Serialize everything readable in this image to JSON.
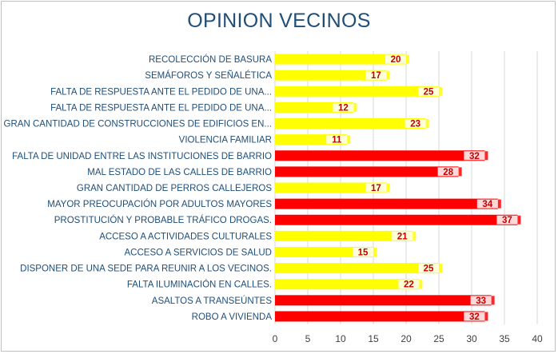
{
  "chart_data": {
    "type": "bar",
    "orientation": "horizontal",
    "title": "OPINION VECINOS",
    "categories": [
      "RECOLECCIÓN DE BASURA",
      "SEMÁFOROS Y SEÑALÉTICA",
      "FALTA DE RESPUESTA ANTE EL PEDIDO DE UNA...",
      "FALTA DE RESPUESTA ANTE EL PEDIDO DE UNA...",
      "GRAN CANTIDAD DE CONSTRUCCIONES DE EDIFICIOS EN...",
      "VIOLENCIA FAMILIAR",
      "FALTA DE UNIDAD ENTRE LAS INSTITUCIONES DE BARRIO",
      "MAL ESTADO DE LAS CALLES DE BARRIO",
      "GRAN CANTIDAD DE PERROS CALLEJEROS",
      "MAYOR PREOCUPACIÓN POR  ADULTOS MAYORES",
      "PROSTITUCIÓN Y PROBABLE TRÁFICO DROGAS.",
      "ACCESO A ACTIVIDADES CULTURALES",
      "ACCESO A SERVICIOS DE SALUD",
      "DISPONER DE UNA SEDE PARA REUNIR A LOS VECINOS.",
      "FALTA ILUMINACIÓN EN CALLES.",
      "ASALTOS A TRANSEÚNTES",
      "ROBO A VIVIENDA"
    ],
    "values": [
      20,
      17,
      25,
      12,
      23,
      11,
      32,
      28,
      17,
      34,
      37,
      21,
      15,
      25,
      22,
      33,
      32
    ],
    "bar_colors": [
      "#ffff00",
      "#ffff00",
      "#ffff00",
      "#ffff00",
      "#ffff00",
      "#ffff00",
      "#ff0000",
      "#ff0000",
      "#ffff00",
      "#ff0000",
      "#ff0000",
      "#ffff00",
      "#ffff00",
      "#ffff00",
      "#ffff00",
      "#ff0000",
      "#ff0000"
    ],
    "xlim": [
      0,
      40
    ],
    "xticks": [
      0,
      5,
      10,
      15,
      20,
      25,
      30,
      35,
      40
    ],
    "grid": "vertical",
    "legend": "none",
    "colors": {
      "title": "#1f4e79",
      "category_text": "#1f4e79",
      "data_label": "#c00000",
      "grid": "#d9d9d9"
    }
  }
}
